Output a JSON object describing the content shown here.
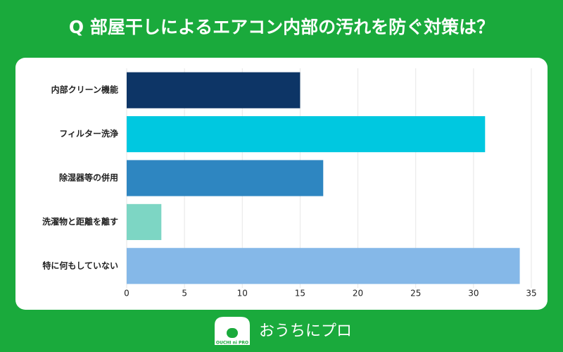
{
  "chart_data": {
    "type": "bar",
    "orientation": "horizontal",
    "title": "Q 部屋干しによるエアコン内部の汚れを防ぐ対策は？",
    "categories": [
      "内部クリーン機能",
      "フィルター洗浄",
      "除湿器等の併用",
      "洗濯物と距離を離す",
      "特に何もしていない"
    ],
    "values": [
      15,
      31,
      17,
      3,
      34
    ],
    "colors": [
      "#0d3566",
      "#00c8e0",
      "#2e86c1",
      "#7dd6c4",
      "#85b8e8"
    ],
    "xlim": [
      0,
      35
    ],
    "xticks": [
      0,
      5,
      10,
      15,
      20,
      25,
      30,
      35
    ],
    "grid": true
  },
  "footer": {
    "logo_text": "OUCHI ni PRO",
    "brand": "おうちにプロ"
  }
}
